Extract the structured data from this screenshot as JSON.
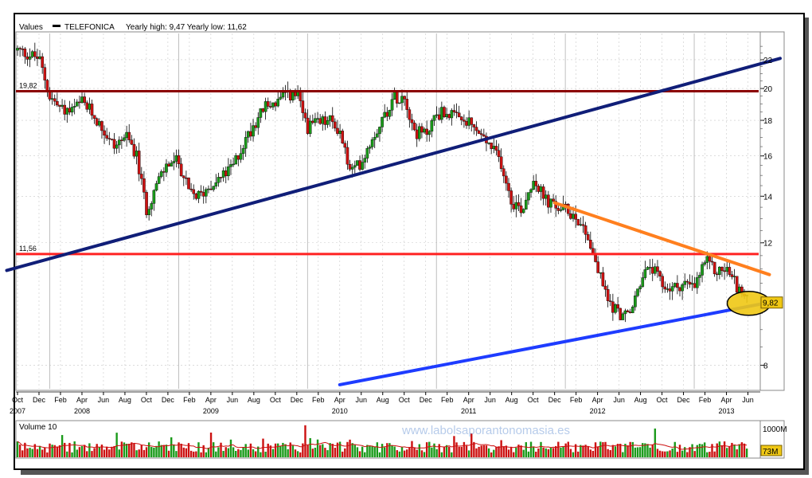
{
  "chart_data": {
    "type": "candlestick",
    "header": {
      "values_label": "Values",
      "series_name": "TELEFONICA",
      "yearly_text": "Yearly high: 9,47 Yearly low: 11,62"
    },
    "y_axis": {
      "scale": "log",
      "ylim": [
        7.4,
        24
      ],
      "ticks": [
        "22",
        "20",
        "18",
        "16",
        "14",
        "12",
        "8"
      ],
      "position": "right"
    },
    "x_axis": {
      "start": "2007-10",
      "end": "2013-07",
      "month_labels": [
        {
          "t": "2007-10",
          "label": "Oct"
        },
        {
          "t": "2007-12",
          "label": "Dec"
        },
        {
          "t": "2008-02",
          "label": "Feb"
        },
        {
          "t": "2008-04",
          "label": "Apr"
        },
        {
          "t": "2008-06",
          "label": "Jun"
        },
        {
          "t": "2008-08",
          "label": "Aug"
        },
        {
          "t": "2008-10",
          "label": "Oct"
        },
        {
          "t": "2008-12",
          "label": "Dec"
        },
        {
          "t": "2009-02",
          "label": "Feb"
        },
        {
          "t": "2009-04",
          "label": "Apr"
        },
        {
          "t": "2009-06",
          "label": "Jun"
        },
        {
          "t": "2009-08",
          "label": "Aug"
        },
        {
          "t": "2009-10",
          "label": "Oct"
        },
        {
          "t": "2009-12",
          "label": "Dec"
        },
        {
          "t": "2010-02",
          "label": "Feb"
        },
        {
          "t": "2010-04",
          "label": "Apr"
        },
        {
          "t": "2010-06",
          "label": "Jun"
        },
        {
          "t": "2010-08",
          "label": "Aug"
        },
        {
          "t": "2010-10",
          "label": "Oct"
        },
        {
          "t": "2010-12",
          "label": "Dec"
        },
        {
          "t": "2011-02",
          "label": "Feb"
        },
        {
          "t": "2011-04",
          "label": "Apr"
        },
        {
          "t": "2011-06",
          "label": "Jun"
        },
        {
          "t": "2011-08",
          "label": "Aug"
        },
        {
          "t": "2011-10",
          "label": "Oct"
        },
        {
          "t": "2011-12",
          "label": "Dec"
        },
        {
          "t": "2012-02",
          "label": "Feb"
        },
        {
          "t": "2012-04",
          "label": "Apr"
        },
        {
          "t": "2012-06",
          "label": "Jun"
        },
        {
          "t": "2012-08",
          "label": "Aug"
        },
        {
          "t": "2012-10",
          "label": "Oct"
        },
        {
          "t": "2012-12",
          "label": "Dec"
        },
        {
          "t": "2013-02",
          "label": "Feb"
        },
        {
          "t": "2013-04",
          "label": "Apr"
        },
        {
          "t": "2013-06",
          "label": "Jun"
        }
      ],
      "year_labels": [
        {
          "t": "2007-10",
          "label": "2007"
        },
        {
          "t": "2008-04",
          "label": "2008"
        },
        {
          "t": "2009-04",
          "label": "2009"
        },
        {
          "t": "2010-04",
          "label": "2010"
        },
        {
          "t": "2011-04",
          "label": "2011"
        },
        {
          "t": "2012-04",
          "label": "2012"
        },
        {
          "t": "2013-04",
          "label": "2013"
        }
      ]
    },
    "price_path": [
      {
        "t": "2007-10",
        "v": 22.7
      },
      {
        "t": "2007-11",
        "v": 22.4
      },
      {
        "t": "2007-12",
        "v": 22.1
      },
      {
        "t": "2008-01",
        "v": 19.5
      },
      {
        "t": "2008-02",
        "v": 18.7
      },
      {
        "t": "2008-03",
        "v": 18.5
      },
      {
        "t": "2008-04",
        "v": 19.1
      },
      {
        "t": "2008-05",
        "v": 18.4
      },
      {
        "t": "2008-06",
        "v": 17.4
      },
      {
        "t": "2008-07",
        "v": 16.5
      },
      {
        "t": "2008-08",
        "v": 17.1
      },
      {
        "t": "2008-09",
        "v": 16.2
      },
      {
        "t": "2008-10",
        "v": 13.4
      },
      {
        "t": "2008-11",
        "v": 14.6
      },
      {
        "t": "2008-12",
        "v": 15.6
      },
      {
        "t": "2009-01",
        "v": 15.7
      },
      {
        "t": "2009-02",
        "v": 14.1
      },
      {
        "t": "2009-03",
        "v": 14.0
      },
      {
        "t": "2009-04",
        "v": 14.6
      },
      {
        "t": "2009-05",
        "v": 14.9
      },
      {
        "t": "2009-06",
        "v": 15.4
      },
      {
        "t": "2009-07",
        "v": 16.6
      },
      {
        "t": "2009-08",
        "v": 17.8
      },
      {
        "t": "2009-09",
        "v": 18.8
      },
      {
        "t": "2009-10",
        "v": 19.1
      },
      {
        "t": "2009-11",
        "v": 19.5
      },
      {
        "t": "2009-12",
        "v": 19.6
      },
      {
        "t": "2010-01",
        "v": 17.6
      },
      {
        "t": "2010-02",
        "v": 17.8
      },
      {
        "t": "2010-03",
        "v": 18.0
      },
      {
        "t": "2010-04",
        "v": 17.4
      },
      {
        "t": "2010-05",
        "v": 15.1
      },
      {
        "t": "2010-06",
        "v": 15.7
      },
      {
        "t": "2010-07",
        "v": 17.0
      },
      {
        "t": "2010-08",
        "v": 18.1
      },
      {
        "t": "2010-09",
        "v": 19.4
      },
      {
        "t": "2010-10",
        "v": 19.6
      },
      {
        "t": "2010-11",
        "v": 17.3
      },
      {
        "t": "2010-12",
        "v": 17.2
      },
      {
        "t": "2011-01",
        "v": 18.4
      },
      {
        "t": "2011-02",
        "v": 18.5
      },
      {
        "t": "2011-03",
        "v": 18.0
      },
      {
        "t": "2011-04",
        "v": 17.8
      },
      {
        "t": "2011-05",
        "v": 17.2
      },
      {
        "t": "2011-06",
        "v": 16.5
      },
      {
        "t": "2011-07",
        "v": 15.7
      },
      {
        "t": "2011-08",
        "v": 13.8
      },
      {
        "t": "2011-09",
        "v": 13.4
      },
      {
        "t": "2011-10",
        "v": 14.9
      },
      {
        "t": "2011-11",
        "v": 13.9
      },
      {
        "t": "2011-12",
        "v": 13.5
      },
      {
        "t": "2012-01",
        "v": 13.4
      },
      {
        "t": "2012-02",
        "v": 13.1
      },
      {
        "t": "2012-03",
        "v": 12.4
      },
      {
        "t": "2012-04",
        "v": 11.0
      },
      {
        "t": "2012-05",
        "v": 9.9
      },
      {
        "t": "2012-06",
        "v": 9.5
      },
      {
        "t": "2012-07",
        "v": 9.4
      },
      {
        "t": "2012-08",
        "v": 10.6
      },
      {
        "t": "2012-09",
        "v": 11.1
      },
      {
        "t": "2012-10",
        "v": 10.4
      },
      {
        "t": "2012-11",
        "v": 10.3
      },
      {
        "t": "2012-12",
        "v": 10.5
      },
      {
        "t": "2013-01",
        "v": 10.3
      },
      {
        "t": "2013-02",
        "v": 11.3
      },
      {
        "t": "2013-03",
        "v": 10.9
      },
      {
        "t": "2013-04",
        "v": 11.0
      },
      {
        "t": "2013-05",
        "v": 10.4
      },
      {
        "t": "2013-06",
        "v": 9.82
      }
    ],
    "horizontal_lines": [
      {
        "name": "resistance-19-82",
        "label": "19,82",
        "value": 19.82,
        "color": "#8b0000"
      },
      {
        "name": "support-11-56",
        "label": "11,56",
        "value": 11.56,
        "color": "#ff2222"
      }
    ],
    "trend_lines": [
      {
        "name": "long-term-uptrend",
        "color": "#101e78",
        "from": {
          "t": "2007-09",
          "v": 10.95
        },
        "to": {
          "t": "2013-09",
          "v": 22.1
        }
      },
      {
        "name": "short-term-downtrend",
        "color": "#ff7f1e",
        "from": {
          "t": "2011-12",
          "v": 13.7
        },
        "to": {
          "t": "2013-08",
          "v": 10.8
        }
      },
      {
        "name": "support-uptrend",
        "color": "#1e3cff",
        "from": {
          "t": "2010-04",
          "v": 7.5
        },
        "to": {
          "t": "2013-08",
          "v": 9.85
        }
      }
    ],
    "last_price": {
      "label": "9,82",
      "value": 9.82,
      "highlight_color": "#f0c814"
    },
    "volume": {
      "title": "Volume 10",
      "scale_label": "1000M",
      "last_label": "73M"
    },
    "watermark": "www.labolsaporantonomasia.es",
    "colors": {
      "up": "#1a9a1a",
      "down": "#cc1111",
      "volume_ma": "#cc1111",
      "grid": "#c8c8c8"
    }
  }
}
